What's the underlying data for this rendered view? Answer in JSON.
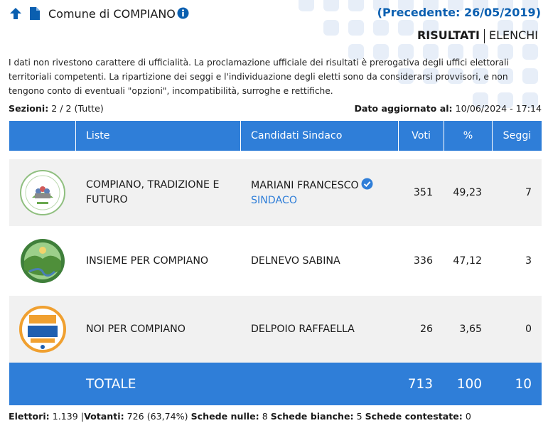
{
  "header": {
    "title": "Comune di COMPIANO",
    "previous": "(Precedente: 26/05/2019)",
    "icons": {
      "up": "arrow-up-icon",
      "doc": "document-icon",
      "info": "info-icon"
    }
  },
  "tabs": [
    {
      "label": "RISULTATI",
      "active": true
    },
    {
      "label": "ELENCHI",
      "active": false
    }
  ],
  "disclaimer": "I dati non rivestono carattere di ufficialità. La proclamazione ufficiale dei risultati è prerogativa degli uffici elettorali territoriali competenti. La ripartizione dei seggi e l'individuazione degli eletti sono da considerarsi provvisori, e non tengono conto di eventuali \"opzioni\", incompatibilità, surroghe e rettifiche.",
  "meta": {
    "sezioni_label": "Sezioni:",
    "sezioni_value": "2 / 2 (Tutte)",
    "updated_label": "Dato aggiornato al:",
    "updated_value": "10/06/2024 - 17:14"
  },
  "table": {
    "headers": {
      "liste": "Liste",
      "candidati": "Candidati Sindaco",
      "voti": "Voti",
      "perc": "%",
      "seggi": "Seggi"
    },
    "rows": [
      {
        "lista": "COMPIANO, TRADIZIONE E FUTURO",
        "candidato": "MARIANI FRANCESCO",
        "ruolo": "SINDACO",
        "voti": "351",
        "perc": "49,23",
        "seggi": "7"
      },
      {
        "lista": "INSIEME PER COMPIANO",
        "candidato": "DELNEVO SABINA",
        "ruolo": "",
        "voti": "336",
        "perc": "47,12",
        "seggi": "3"
      },
      {
        "lista": "NOI PER COMPIANO",
        "candidato": "DELPOIO RAFFAELLA",
        "ruolo": "",
        "voti": "26",
        "perc": "3,65",
        "seggi": "0"
      }
    ],
    "total": {
      "label": "TOTALE",
      "voti": "713",
      "perc": "100",
      "seggi": "10"
    }
  },
  "footer": {
    "elettori_label": "Elettori:",
    "elettori_value": "1.139",
    "sep": "|",
    "votanti_label": "Votanti:",
    "votanti_value": "726 (63,74%)",
    "nulle_label": "Schede nulle:",
    "nulle_value": "8",
    "bianche_label": "Schede bianche:",
    "bianche_value": "5",
    "contestate_label": "Schede contestate:",
    "contestate_value": "0"
  },
  "colors": {
    "accent": "#2f7ed8",
    "link": "#0a5fb0",
    "row_alt": "#f1f1f1"
  }
}
